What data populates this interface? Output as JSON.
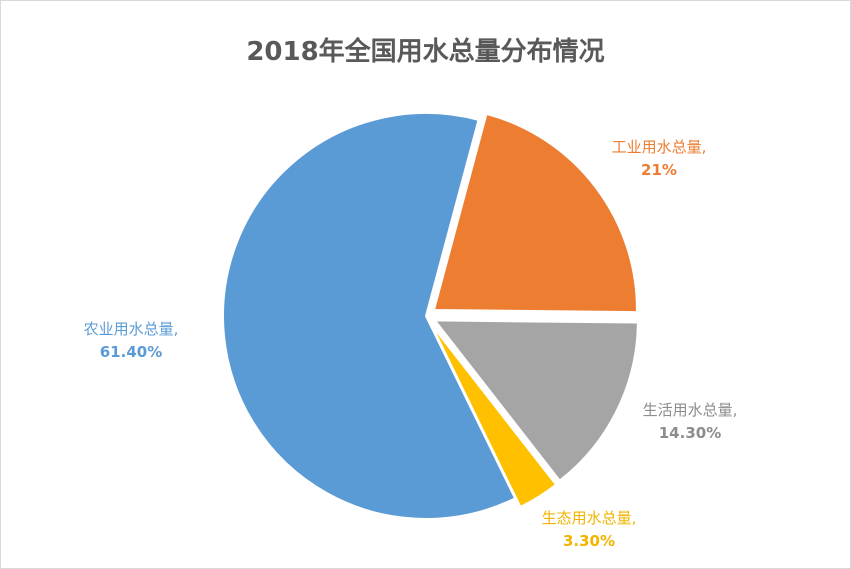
{
  "chart_data": {
    "type": "pie",
    "title": "2018年全国用水总量分布情况",
    "slices": [
      {
        "label": "工业用水总量,",
        "value_label": "21%",
        "value": 21.0,
        "color": "#ED7D31",
        "exploded": true
      },
      {
        "label": "生活用水总量,",
        "value_label": "14.30%",
        "value": 14.3,
        "color": "#A5A5A5",
        "exploded": true
      },
      {
        "label": "生态用水总量,",
        "value_label": "3.30%",
        "value": 3.3,
        "color": "#FFC000",
        "exploded": true
      },
      {
        "label": "农业用水总量,",
        "value_label": "61.40%",
        "value": 61.4,
        "color": "#5B9BD5",
        "exploded": false
      }
    ],
    "start_angle_deg": 15,
    "direction": "clockwise",
    "legend": "none"
  }
}
